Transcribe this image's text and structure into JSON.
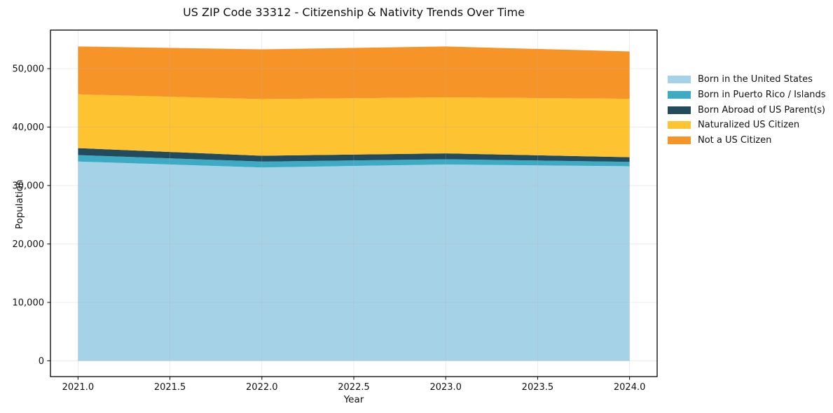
{
  "chart_data": {
    "type": "area",
    "stacked": true,
    "title": "US ZIP Code 33312 - Citizenship & Nativity Trends Over Time",
    "xlabel": "Year",
    "ylabel": "Population",
    "x": [
      2021,
      2022,
      2023,
      2024
    ],
    "series": [
      {
        "name": "Born in the United States",
        "color": "#a6d2e7",
        "values": [
          34100,
          33100,
          33600,
          33300
        ]
      },
      {
        "name": "Born in Puerto Rico / Islands",
        "color": "#3eabc4",
        "values": [
          1100,
          1000,
          900,
          750
        ]
      },
      {
        "name": "Born Abroad of US Parent(s)",
        "color": "#234b5e",
        "values": [
          1200,
          1000,
          1000,
          800
        ]
      },
      {
        "name": "Naturalized US Citizen",
        "color": "#fdc330",
        "values": [
          9200,
          9700,
          9600,
          10000
        ]
      },
      {
        "name": "Not a US Citizen",
        "color": "#f79428",
        "values": [
          8200,
          8500,
          8700,
          8100
        ]
      }
    ],
    "xlim": [
      2020.85,
      2024.15
    ],
    "ylim": [
      -2700,
      56600
    ],
    "xticks": {
      "values": [
        2021.0,
        2021.5,
        2022.0,
        2022.5,
        2023.0,
        2023.5,
        2024.0
      ],
      "labels": [
        "2021.0",
        "2021.5",
        "2022.0",
        "2022.5",
        "2023.0",
        "2023.5",
        "2024.0"
      ]
    },
    "yticks": {
      "values": [
        0,
        10000,
        20000,
        30000,
        40000,
        50000
      ],
      "labels": [
        "0",
        "10,000",
        "20,000",
        "30,000",
        "40,000",
        "50,000"
      ]
    },
    "grid": true,
    "grid_above_areas": true,
    "legend_position": "right-outside",
    "spine_color": "#000000",
    "grid_color": "#b0b0b0"
  }
}
